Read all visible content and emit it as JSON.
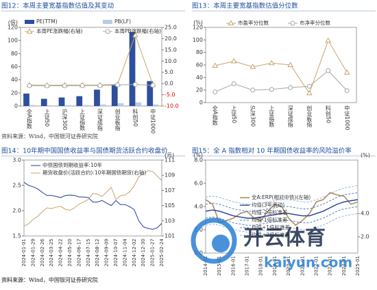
{
  "chart_data": [
    {
      "type": "bar",
      "title": "图12：本周主要宽基指数估值及其变动",
      "source": "资料来源：Wind，中国银河证券研究院",
      "ylabel": "(倍)",
      "categories": [
        "全A指数",
        "上证50",
        "沪深300",
        "上证指数",
        "深证成指",
        "创业板指",
        "科创50",
        "中证1000"
      ],
      "series": [
        {
          "name": "PE(TTM)",
          "type": "bar",
          "color": "#2e4f9e",
          "values": [
            19,
            11,
            13,
            15,
            25,
            33,
            113,
            38
          ]
        },
        {
          "name": "PB(LF)",
          "type": "bar",
          "color": "#b8cce4",
          "values": [
            1.5,
            1.2,
            1.4,
            1.4,
            2.3,
            4.3,
            5.5,
            2.3
          ]
        },
        {
          "name": "本周PE涨跌幅(右轴)",
          "type": "line",
          "marker": "triangle",
          "color": "#c8a46b",
          "axis": "y2",
          "values": [
            -0.6,
            -0.8,
            -0.7,
            -0.7,
            -0.7,
            -0.3,
            21.5,
            -0.6
          ]
        },
        {
          "name": "本周PB涨跌幅(右轴)",
          "type": "line",
          "marker": "circle",
          "color": "#a6a6a6",
          "axis": "y2",
          "values": [
            -0.9,
            -1.0,
            -1.0,
            -0.9,
            -0.9,
            -0.6,
            -0.4,
            -0.8
          ]
        }
      ],
      "ylim": [
        0,
        120
      ],
      "yticks": [
        0,
        20,
        40,
        60,
        80,
        100,
        120
      ],
      "y2lim": [
        -10,
        25
      ],
      "y2ticks": [
        {
          "value": -10,
          "label": "-10.0"
        },
        {
          "value": -5,
          "label": "-5.0"
        },
        {
          "value": 0,
          "label": "0.0"
        },
        {
          "value": 5,
          "label": "5.0"
        },
        {
          "value": 10,
          "label": "10.0"
        },
        {
          "value": 15,
          "label": "15.0"
        },
        {
          "value": 20,
          "label": "20.0"
        },
        {
          "value": 25,
          "label": "25.0"
        }
      ],
      "y2_negative_color": "#e00000"
    },
    {
      "type": "line",
      "title": "图13：本周主要宽基指数估值分位数",
      "ylabel": "(%)",
      "categories": [
        "全A指数",
        "上证50",
        "沪深300",
        "上证指数",
        "深证成指",
        "创业板指",
        "科创50",
        "中证1000"
      ],
      "series": [
        {
          "name": "市盈率分位数",
          "type": "line",
          "marker": "triangle",
          "color": "#c8a46b",
          "values": [
            59,
            66,
            57,
            63,
            60,
            15,
            99,
            48
          ]
        },
        {
          "name": "市净率分位数",
          "type": "line",
          "marker": "circle",
          "color": "#a6a6a6",
          "values": [
            17,
            30,
            20,
            21,
            24,
            26,
            51,
            19
          ]
        }
      ],
      "ylim": [
        0,
        120
      ],
      "yticks": [
        0,
        20,
        40,
        60,
        80,
        100,
        120
      ]
    },
    {
      "type": "line",
      "title": "图14：10年期中国国债收益率与国债期货活跃合约收盘价",
      "source": "资料来源：Wind，中国银河证券研究院",
      "y2label": "(元)",
      "categories": [
        "2024-01-01",
        null,
        "2024-01-29",
        null,
        "2024-02-26",
        null,
        "2024-03-25",
        null,
        "2024-04-22",
        null,
        "2024-05-20",
        null,
        "2024-06-17",
        null,
        "2024-07-15",
        null,
        "2024-08-12",
        null,
        "2024-09-09",
        null,
        "2024-10-07",
        null,
        "2024-11-04",
        null,
        "2024-12-02",
        null,
        "2024-12-30",
        null,
        "2025-01-27",
        null,
        "2025-02-24"
      ],
      "series": [
        {
          "name": "中债国债到期收益率:10年",
          "type": "line",
          "color": "#1f3d99",
          "values": [
            2.56,
            2.5,
            2.47,
            2.43,
            2.36,
            2.3,
            2.3,
            2.28,
            2.26,
            2.3,
            2.31,
            2.3,
            2.27,
            2.27,
            2.26,
            2.17,
            2.17,
            2.2,
            2.15,
            2.1,
            2.2,
            2.12,
            2.12,
            2.08,
            2.02,
            1.8,
            1.68,
            1.65,
            1.63,
            1.66,
            1.75
          ]
        },
        {
          "name": "期货收盘价(活跃合约):10年期国债期货(右轴)",
          "type": "line",
          "color": "#c8a46b",
          "axis": "y2",
          "values": [
            102.3,
            102.6,
            103.2,
            103.6,
            104.2,
            104.7,
            104.6,
            104.8,
            104.9,
            104.5,
            104.4,
            104.7,
            105.2,
            105.5,
            105.8,
            106.6,
            106.5,
            106.2,
            106.8,
            107.4,
            105.8,
            106.3,
            106.4,
            106.8,
            107.6,
            108.8,
            109.2,
            109.6,
            109.5,
            108.9,
            108.3
          ]
        }
      ],
      "ylim": [
        1.5,
        3.0
      ],
      "yticks": [
        1.5,
        {
          "value": 2,
          "label": "2.0"
        },
        2.5,
        {
          "value": 3,
          "label": "3.0"
        }
      ],
      "y2lim": [
        101,
        111
      ],
      "y2ticks": [
        101,
        103,
        105,
        107,
        109,
        111
      ]
    },
    {
      "type": "line",
      "title": "图15：全 A 指数相对 10 年期国债收益率的风险溢价率",
      "ylabel": "(%)",
      "y2label": "(%)",
      "categories": [
        "2014-01",
        null,
        "2015-01",
        null,
        "2016-01",
        null,
        "2017-01",
        null,
        "2018-01",
        null,
        "2019-01",
        null,
        "2020-01",
        null,
        "2021-01",
        null,
        "2022-01",
        null,
        "2023-01",
        null,
        "2024-01",
        null,
        "2025-01"
      ],
      "series": [
        {
          "name": "全A:ERP(相对中债)(左轴)",
          "type": "line",
          "color": "#b08d57",
          "width": 1.6,
          "values": [
            4.6,
            4.2,
            2.6,
            2.8,
            3.0,
            3.4,
            3.6,
            3.0,
            2.8,
            3.6,
            4.2,
            4.0,
            3.0,
            2.4,
            2.8,
            3.4,
            4.4,
            4.6,
            5.2,
            5.0,
            4.9,
            4.2,
            4.4
          ]
        },
        {
          "name": "均值(3年滚动)",
          "type": "line",
          "color": "#1f3d99",
          "width": 1.4,
          "values": [
            3.6,
            3.7,
            3.6,
            3.4,
            3.2,
            3.1,
            3.0,
            3.0,
            3.1,
            3.2,
            3.3,
            3.4,
            3.4,
            3.3,
            3.2,
            3.2,
            3.4,
            3.6,
            3.9,
            4.2,
            4.4,
            4.5,
            4.6
          ]
        },
        {
          "name": "均值-2倍标准差",
          "type": "line",
          "dash": true,
          "color": "#8eb4e3",
          "values": [
            2.4,
            2.5,
            2.4,
            2.2,
            2.0,
            1.9,
            1.8,
            1.8,
            1.9,
            2.0,
            2.1,
            2.2,
            2.2,
            2.1,
            2.0,
            2.0,
            2.2,
            2.4,
            2.7,
            3.0,
            3.2,
            3.3,
            3.4
          ]
        },
        {
          "name": "均值-1倍标准差",
          "type": "line",
          "dash": true,
          "color": "#4f81bd",
          "values": [
            3.0,
            3.1,
            3.0,
            2.8,
            2.6,
            2.5,
            2.4,
            2.4,
            2.5,
            2.6,
            2.7,
            2.8,
            2.8,
            2.7,
            2.6,
            2.6,
            2.8,
            3.0,
            3.3,
            3.6,
            3.8,
            3.9,
            4.0
          ]
        },
        {
          "name": "均值+1倍标准差",
          "type": "line",
          "dash": true,
          "color": "#4f81bd",
          "values": [
            4.2,
            4.3,
            4.2,
            4.0,
            3.8,
            3.7,
            3.6,
            3.6,
            3.7,
            3.8,
            3.9,
            4.0,
            4.0,
            3.9,
            3.8,
            3.8,
            4.0,
            4.2,
            4.5,
            4.8,
            5.0,
            5.1,
            5.2
          ]
        },
        {
          "name": "均值+2倍标准差",
          "type": "line",
          "dash": true,
          "color": "#8eb4e3",
          "values": [
            4.8,
            4.9,
            4.8,
            4.6,
            4.4,
            4.3,
            4.2,
            4.2,
            4.3,
            4.4,
            4.5,
            4.6,
            4.6,
            4.5,
            4.4,
            4.4,
            4.6,
            4.8,
            5.1,
            5.4,
            5.6,
            5.7,
            5.8
          ]
        }
      ],
      "ylim": [
        0,
        8
      ],
      "yticks": [
        {
          "value": 0,
          "label": "0.0"
        },
        {
          "value": 2,
          "label": "2.0"
        },
        {
          "value": 4,
          "label": "4.0"
        },
        {
          "value": 6,
          "label": "6.0"
        },
        {
          "value": 8,
          "label": "8.0"
        }
      ],
      "y2lim": [
        0.6,
        8.6
      ],
      "y2ticks": [
        {
          "value": 2,
          "label": "2.0"
        },
        {
          "value": 4,
          "label": "4.0"
        }
      ]
    }
  ],
  "footer_source": "资料来源：Wind，中国银河证券研究院",
  "watermark": {
    "brand": "开云体育",
    "url": "kaiyun.com"
  }
}
